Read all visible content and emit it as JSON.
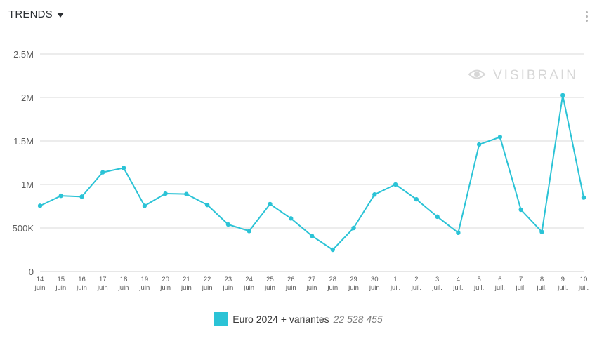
{
  "header": {
    "title": "TRENDS",
    "menu_icon": "more-vertical-icon"
  },
  "watermark": {
    "text": "VISIBRAIN",
    "icon": "eye-icon"
  },
  "colors": {
    "series": "#2bc3d6",
    "grid": "#d9d9d9",
    "axis_text": "#5a5a5a"
  },
  "chart_data": {
    "type": "line",
    "grid": true,
    "legend_position": "bottom",
    "ylim": [
      0,
      2500000
    ],
    "yticks": [
      {
        "value": 0,
        "label": "0"
      },
      {
        "value": 500000,
        "label": "500K"
      },
      {
        "value": 1000000,
        "label": "1M"
      },
      {
        "value": 1500000,
        "label": "1.5M"
      },
      {
        "value": 2000000,
        "label": "2M"
      },
      {
        "value": 2500000,
        "label": "2.5M"
      }
    ],
    "categories": [
      [
        "14",
        "juin"
      ],
      [
        "15",
        "juin"
      ],
      [
        "16",
        "juin"
      ],
      [
        "17",
        "juin"
      ],
      [
        "18",
        "juin"
      ],
      [
        "19",
        "juin"
      ],
      [
        "20",
        "juin"
      ],
      [
        "21",
        "juin"
      ],
      [
        "22",
        "juin"
      ],
      [
        "23",
        "juin"
      ],
      [
        "24",
        "juin"
      ],
      [
        "25",
        "juin"
      ],
      [
        "26",
        "juin"
      ],
      [
        "27",
        "juin"
      ],
      [
        "28",
        "juin"
      ],
      [
        "29",
        "juin"
      ],
      [
        "30",
        "juin"
      ],
      [
        "1",
        "juil."
      ],
      [
        "2",
        "juil."
      ],
      [
        "3",
        "juil."
      ],
      [
        "4",
        "juil."
      ],
      [
        "5",
        "juil."
      ],
      [
        "6",
        "juil."
      ],
      [
        "7",
        "juil."
      ],
      [
        "8",
        "juil."
      ],
      [
        "9",
        "juil."
      ],
      [
        "10",
        "juil."
      ]
    ],
    "series": [
      {
        "name": "Euro 2024 + variantes",
        "total": "22 528 455",
        "values": [
          755000,
          870000,
          860000,
          1140000,
          1190000,
          755000,
          895000,
          890000,
          765000,
          540000,
          465000,
          775000,
          610000,
          410000,
          250000,
          500000,
          885000,
          1000000,
          830000,
          630000,
          445000,
          1460000,
          1545000,
          710000,
          455000,
          2025000,
          850000
        ]
      }
    ]
  }
}
